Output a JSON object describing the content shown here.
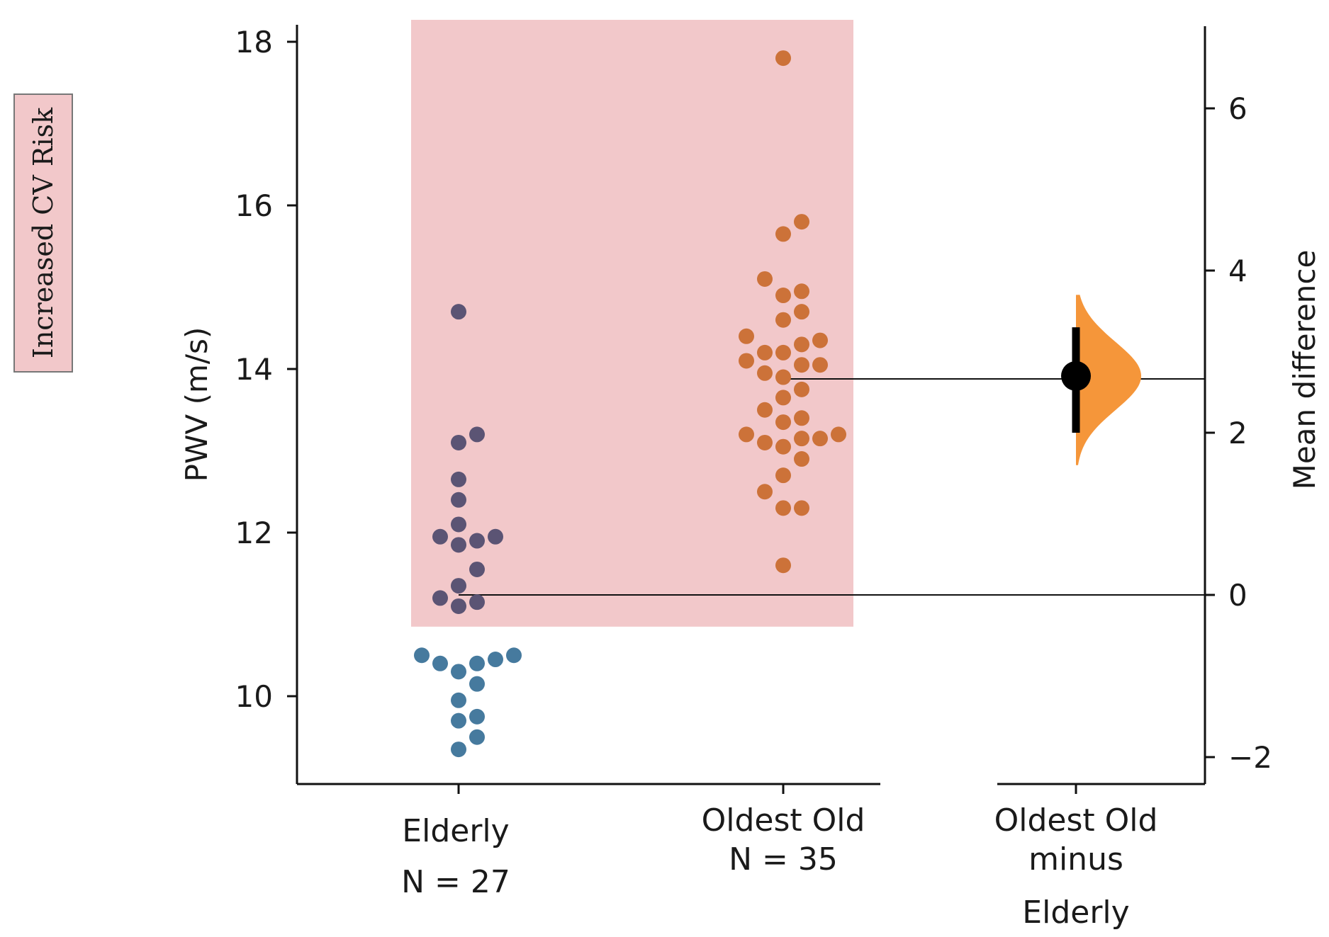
{
  "chart_data": {
    "type": "scatter",
    "subtype": "estimation-swarm-plot",
    "ylabel": "PWV (m/s)",
    "ylim": [
      9,
      18.5
    ],
    "yticks": [
      10,
      12,
      14,
      16,
      18
    ],
    "y2label": "Mean difference",
    "y2ticks": [
      "6",
      "4",
      "2",
      "0",
      "−2"
    ],
    "y2_tick_values": [
      6,
      4,
      2,
      0,
      -2
    ],
    "legend": {
      "label": "Increased CV Risk",
      "color": "#f2c8ca",
      "placement": "left"
    },
    "risk_threshold": 10.85,
    "groups": [
      {
        "name": "Elderly",
        "n_label": "N = 27",
        "color_high": "#5b5474",
        "color_low": "#467a9e",
        "values": [
          14.7,
          13.2,
          13.1,
          12.65,
          12.4,
          12.1,
          11.9,
          11.85,
          11.95,
          11.95,
          11.55,
          11.35,
          11.15,
          11.1,
          11.2,
          10.5,
          10.45,
          10.4,
          10.4,
          10.5,
          10.3,
          10.15,
          9.95,
          9.75,
          9.7,
          9.5,
          9.35
        ]
      },
      {
        "name": "Oldest Old",
        "n_label": "N = 35",
        "color": "#cc7239",
        "values": [
          17.8,
          15.8,
          15.65,
          15.1,
          14.95,
          14.9,
          14.7,
          14.6,
          14.4,
          14.35,
          14.3,
          14.2,
          14.2,
          14.1,
          14.05,
          14.05,
          13.9,
          13.95,
          13.75,
          13.65,
          13.5,
          13.4,
          13.35,
          13.2,
          13.15,
          13.15,
          13.1,
          13.05,
          13.2,
          12.9,
          12.7,
          12.5,
          12.3,
          12.3,
          11.6
        ]
      }
    ],
    "effect": {
      "label_lines": [
        "Oldest Old",
        "minus",
        "Elderly"
      ],
      "mean_difference": 2.7,
      "ci": [
        2.0,
        3.3
      ],
      "distribution_range": [
        1.6,
        3.7
      ],
      "color": "#f5963a"
    }
  }
}
